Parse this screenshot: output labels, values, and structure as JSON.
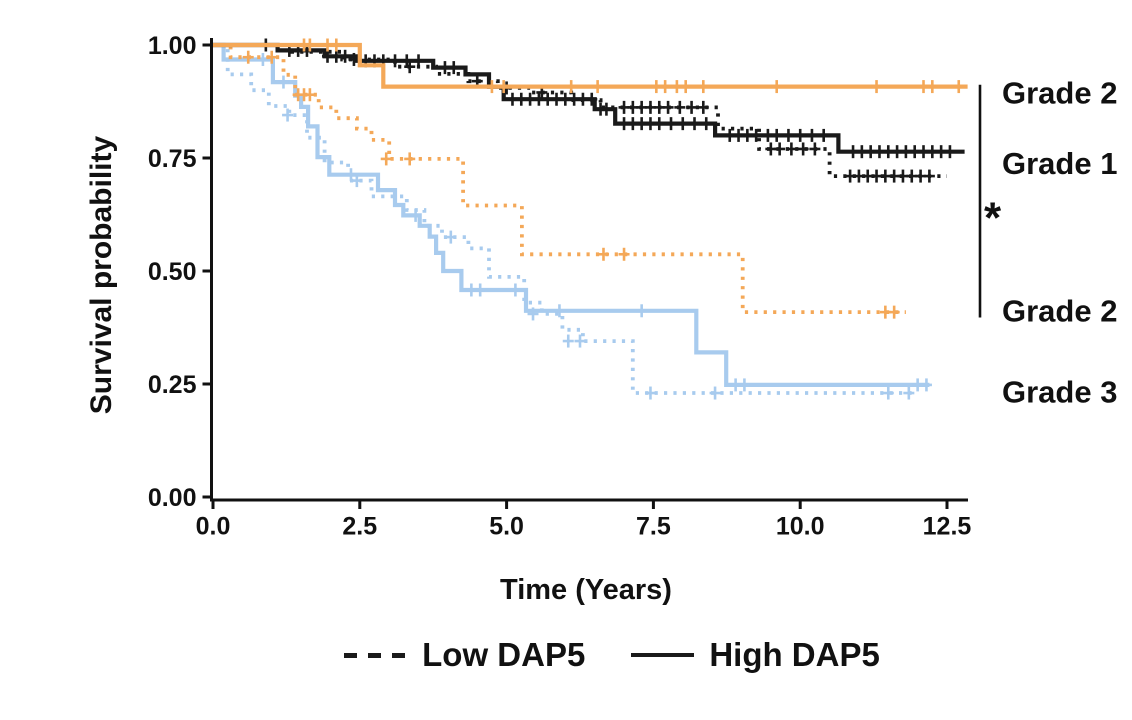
{
  "chart_data": {
    "type": "line",
    "subtype": "kaplan-meier-step",
    "title": "",
    "xlabel": "Time (Years)",
    "ylabel": "Survival probability",
    "xlim": [
      0,
      12.9
    ],
    "ylim": [
      0,
      1.0
    ],
    "grid": false,
    "xticks": [
      0.0,
      2.5,
      5.0,
      7.5,
      10.0,
      12.5
    ],
    "xtick_labels": [
      "0.0",
      "2.5",
      "5.0",
      "7.5",
      "10.0",
      "12.5"
    ],
    "yticks": [
      0.0,
      0.25,
      0.5,
      0.75,
      1.0
    ],
    "ytick_labels": [
      "0.00",
      "0.25",
      "0.50",
      "0.75",
      "1.00"
    ],
    "colors": {
      "grade1": "#1a1a1a",
      "grade2": "#F4A858",
      "grade3": "#A8CBEE"
    },
    "legend": [
      {
        "label": "Low DAP5",
        "style": "dashed"
      },
      {
        "label": "High DAP5",
        "style": "solid"
      }
    ],
    "series": [
      {
        "id": "grade3-low",
        "name": "Grade 3 Low DAP5",
        "color": "#A8CBEE",
        "style": "dashed",
        "steps": [
          [
            0,
            1.0
          ],
          [
            0.25,
            0.935
          ],
          [
            0.65,
            0.9
          ],
          [
            0.95,
            0.865
          ],
          [
            1.3,
            0.845
          ],
          [
            1.6,
            0.795
          ],
          [
            1.9,
            0.74
          ],
          [
            2.3,
            0.7
          ],
          [
            2.7,
            0.665
          ],
          [
            3.3,
            0.635
          ],
          [
            3.6,
            0.6
          ],
          [
            3.9,
            0.575
          ],
          [
            4.35,
            0.55
          ],
          [
            4.7,
            0.487
          ],
          [
            5.3,
            0.43
          ],
          [
            5.6,
            0.405
          ],
          [
            5.95,
            0.37
          ],
          [
            6.3,
            0.345
          ],
          [
            7.15,
            0.23
          ]
        ],
        "end": 12.0,
        "censors": [
          [
            1.27,
            0.845
          ],
          [
            2.45,
            0.7
          ],
          [
            4.05,
            0.575
          ],
          [
            5.45,
            0.405
          ],
          [
            6.05,
            0.345
          ],
          [
            6.25,
            0.345
          ],
          [
            7.45,
            0.23
          ],
          [
            8.55,
            0.23
          ],
          [
            11.5,
            0.23
          ],
          [
            11.85,
            0.23
          ]
        ]
      },
      {
        "id": "grade3-high",
        "name": "Grade 3 High DAP5",
        "color": "#A8CBEE",
        "style": "solid",
        "steps": [
          [
            0,
            1.0
          ],
          [
            0.18,
            0.968
          ],
          [
            1.02,
            0.918
          ],
          [
            1.4,
            0.888
          ],
          [
            1.5,
            0.863
          ],
          [
            1.62,
            0.82
          ],
          [
            1.78,
            0.752
          ],
          [
            1.98,
            0.713
          ],
          [
            2.81,
            0.679
          ],
          [
            3.1,
            0.646
          ],
          [
            3.24,
            0.623
          ],
          [
            3.52,
            0.6
          ],
          [
            3.69,
            0.576
          ],
          [
            3.8,
            0.54
          ],
          [
            3.92,
            0.5
          ],
          [
            4.23,
            0.458
          ],
          [
            5.33,
            0.412
          ],
          [
            8.23,
            0.32
          ],
          [
            8.74,
            0.248
          ]
        ],
        "end": 12.2,
        "censors": [
          [
            0.85,
            0.968
          ],
          [
            1.2,
            0.918
          ],
          [
            2.35,
            0.713
          ],
          [
            3.45,
            0.623
          ],
          [
            4.4,
            0.458
          ],
          [
            4.55,
            0.458
          ],
          [
            5.15,
            0.458
          ],
          [
            5.9,
            0.412
          ],
          [
            7.3,
            0.412
          ],
          [
            8.9,
            0.248
          ],
          [
            9.05,
            0.248
          ],
          [
            12.0,
            0.248
          ],
          [
            12.15,
            0.248
          ]
        ]
      },
      {
        "id": "grade2-low",
        "name": "Grade 2 Low DAP5",
        "color": "#F4A858",
        "style": "dashed",
        "steps": [
          [
            0,
            1.0
          ],
          [
            0.3,
            0.973
          ],
          [
            1.2,
            0.934
          ],
          [
            1.4,
            0.89
          ],
          [
            1.8,
            0.862
          ],
          [
            2.1,
            0.838
          ],
          [
            2.45,
            0.815
          ],
          [
            2.7,
            0.79
          ],
          [
            3.0,
            0.748
          ],
          [
            4.26,
            0.645
          ],
          [
            5.26,
            0.537
          ],
          [
            9.02,
            0.409
          ]
        ],
        "end": 11.8,
        "censors": [
          [
            0.6,
            0.973
          ],
          [
            1.0,
            0.973
          ],
          [
            1.45,
            0.89
          ],
          [
            1.55,
            0.89
          ],
          [
            1.65,
            0.89
          ],
          [
            2.95,
            0.748
          ],
          [
            3.35,
            0.748
          ],
          [
            6.65,
            0.537
          ],
          [
            7.0,
            0.537
          ],
          [
            11.45,
            0.409
          ],
          [
            11.6,
            0.409
          ]
        ]
      },
      {
        "id": "grade1-low",
        "name": "Grade 1 Low DAP5",
        "color": "#1a1a1a",
        "style": "dashed",
        "steps": [
          [
            0,
            1.0
          ],
          [
            1.35,
            0.985
          ],
          [
            2.2,
            0.968
          ],
          [
            3.1,
            0.952
          ],
          [
            3.8,
            0.936
          ],
          [
            4.35,
            0.92
          ],
          [
            4.85,
            0.905
          ],
          [
            5.4,
            0.895
          ],
          [
            6.1,
            0.878
          ],
          [
            6.6,
            0.862
          ],
          [
            8.6,
            0.815
          ],
          [
            9.3,
            0.77
          ],
          [
            10.5,
            0.71
          ]
        ],
        "end": 12.5,
        "censors": [
          [
            2.4,
            0.968
          ],
          [
            3.35,
            0.952
          ],
          [
            4.5,
            0.92
          ],
          [
            5.0,
            0.905
          ],
          [
            5.6,
            0.895
          ],
          [
            7.0,
            0.862
          ],
          [
            7.15,
            0.862
          ],
          [
            7.3,
            0.862
          ],
          [
            7.45,
            0.862
          ],
          [
            7.6,
            0.862
          ],
          [
            7.75,
            0.862
          ],
          [
            7.95,
            0.862
          ],
          [
            8.15,
            0.862
          ],
          [
            8.35,
            0.862
          ],
          [
            9.5,
            0.77
          ],
          [
            9.65,
            0.77
          ],
          [
            9.85,
            0.77
          ],
          [
            10.05,
            0.77
          ],
          [
            10.25,
            0.77
          ],
          [
            10.85,
            0.71
          ],
          [
            11.0,
            0.71
          ],
          [
            11.15,
            0.71
          ],
          [
            11.3,
            0.71
          ],
          [
            11.45,
            0.71
          ],
          [
            11.6,
            0.71
          ],
          [
            11.75,
            0.71
          ],
          [
            11.9,
            0.71
          ],
          [
            12.05,
            0.71
          ],
          [
            12.2,
            0.71
          ]
        ]
      },
      {
        "id": "grade1-high",
        "name": "Grade 1 High DAP5",
        "color": "#1a1a1a",
        "style": "solid",
        "steps": [
          [
            0,
            1.0
          ],
          [
            1.1,
            0.988
          ],
          [
            1.9,
            0.975
          ],
          [
            2.45,
            0.965
          ],
          [
            3.75,
            0.95
          ],
          [
            4.3,
            0.935
          ],
          [
            4.7,
            0.908
          ],
          [
            4.95,
            0.88
          ],
          [
            6.5,
            0.858
          ],
          [
            6.85,
            0.826
          ],
          [
            8.55,
            0.8
          ],
          [
            10.65,
            0.764
          ]
        ],
        "end": 12.8,
        "censors": [
          [
            0.9,
            1.0
          ],
          [
            1.3,
            0.988
          ],
          [
            1.45,
            0.988
          ],
          [
            1.6,
            0.988
          ],
          [
            1.95,
            0.975
          ],
          [
            2.1,
            0.975
          ],
          [
            2.25,
            0.975
          ],
          [
            2.6,
            0.965
          ],
          [
            2.75,
            0.965
          ],
          [
            2.9,
            0.965
          ],
          [
            3.1,
            0.965
          ],
          [
            3.3,
            0.965
          ],
          [
            3.5,
            0.965
          ],
          [
            3.95,
            0.95
          ],
          [
            4.1,
            0.95
          ],
          [
            5.1,
            0.88
          ],
          [
            5.25,
            0.88
          ],
          [
            5.4,
            0.88
          ],
          [
            5.55,
            0.88
          ],
          [
            5.7,
            0.88
          ],
          [
            5.85,
            0.88
          ],
          [
            6.0,
            0.88
          ],
          [
            6.15,
            0.88
          ],
          [
            6.3,
            0.88
          ],
          [
            6.45,
            0.88
          ],
          [
            6.6,
            0.858
          ],
          [
            6.7,
            0.858
          ],
          [
            7.0,
            0.826
          ],
          [
            7.15,
            0.826
          ],
          [
            7.3,
            0.826
          ],
          [
            7.45,
            0.826
          ],
          [
            7.6,
            0.826
          ],
          [
            7.8,
            0.826
          ],
          [
            8.0,
            0.826
          ],
          [
            8.2,
            0.826
          ],
          [
            8.4,
            0.826
          ],
          [
            8.8,
            0.8
          ],
          [
            8.95,
            0.8
          ],
          [
            9.1,
            0.8
          ],
          [
            9.25,
            0.8
          ],
          [
            9.45,
            0.8
          ],
          [
            9.6,
            0.8
          ],
          [
            9.8,
            0.8
          ],
          [
            10.0,
            0.8
          ],
          [
            10.2,
            0.8
          ],
          [
            10.4,
            0.8
          ],
          [
            10.9,
            0.764
          ],
          [
            11.05,
            0.764
          ],
          [
            11.2,
            0.764
          ],
          [
            11.35,
            0.764
          ],
          [
            11.5,
            0.764
          ],
          [
            11.65,
            0.764
          ],
          [
            11.8,
            0.764
          ],
          [
            11.95,
            0.764
          ],
          [
            12.1,
            0.764
          ],
          [
            12.25,
            0.764
          ],
          [
            12.4,
            0.764
          ],
          [
            12.55,
            0.764
          ]
        ]
      },
      {
        "id": "grade2-high",
        "name": "Grade 2 High DAP5",
        "color": "#F4A858",
        "style": "solid",
        "steps": [
          [
            0,
            1.0
          ],
          [
            2.5,
            0.955
          ],
          [
            2.9,
            0.908
          ]
        ],
        "end": 12.85,
        "censors": [
          [
            1.55,
            1.0
          ],
          [
            1.65,
            1.0
          ],
          [
            1.95,
            1.0
          ],
          [
            2.1,
            1.0
          ],
          [
            4.75,
            0.908
          ],
          [
            4.95,
            0.908
          ],
          [
            6.1,
            0.908
          ],
          [
            6.55,
            0.908
          ],
          [
            7.55,
            0.908
          ],
          [
            7.7,
            0.908
          ],
          [
            7.9,
            0.908
          ],
          [
            8.05,
            0.908
          ],
          [
            8.35,
            0.908
          ],
          [
            9.6,
            0.908
          ],
          [
            11.3,
            0.908
          ],
          [
            12.1,
            0.908
          ],
          [
            12.25,
            0.908
          ],
          [
            12.7,
            0.908
          ]
        ]
      }
    ],
    "annotations": {
      "right_labels": [
        {
          "text": "Grade 2",
          "v": 0.896
        },
        {
          "text": "Grade 1",
          "v": 0.74
        },
        {
          "text": "Grade 2",
          "v": 0.414
        },
        {
          "text": "Grade 3",
          "v": 0.235
        }
      ],
      "significance": {
        "symbol": "*",
        "v_top": 0.912,
        "v_bottom": 0.397,
        "v_symbol": 0.585
      }
    }
  }
}
